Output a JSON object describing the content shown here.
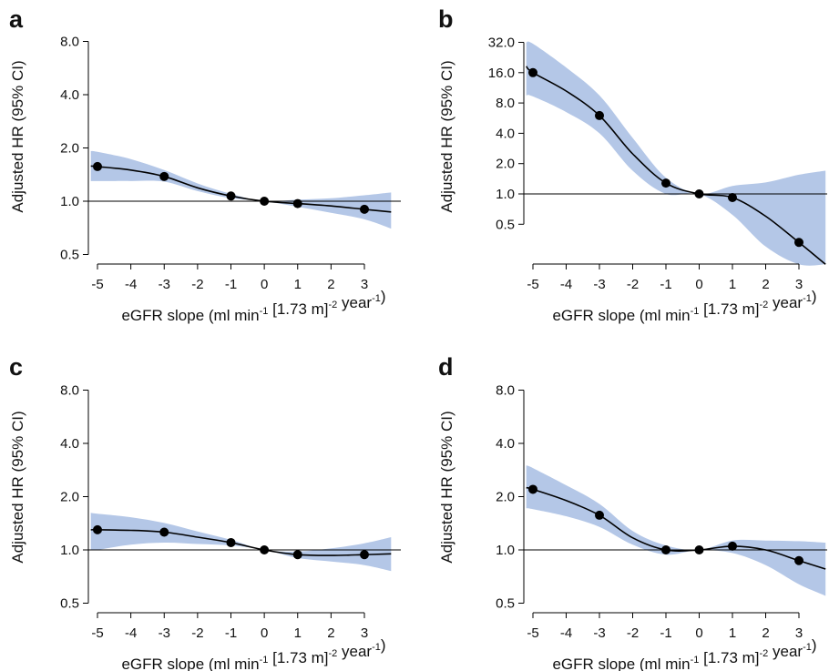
{
  "figure": {
    "colors": {
      "band": "#b4c7e7",
      "line": "#000000",
      "point": "#000000",
      "reference": "#000000"
    }
  },
  "chart_data": [
    {
      "panel": "a",
      "type": "line",
      "xlabel": "eGFR slope (ml min-1 [1.73 m]-2 year-1)",
      "ylabel": "Adjusted HR (95% CI)",
      "y_scale": "log2",
      "xlim": [
        -5.5,
        3.9
      ],
      "ylim": [
        0.45,
        10.0
      ],
      "x_ticks": [
        -5,
        -4,
        -3,
        -2,
        -1,
        0,
        1,
        2,
        3
      ],
      "y_ticks": [
        0.5,
        1.0,
        2.0,
        4.0,
        8.0
      ],
      "y_tick_labels": [
        "0.5",
        "1.0",
        "2.0",
        "4.0",
        "8.0"
      ],
      "reference_y": 1.0,
      "points": {
        "x": [
          -5,
          -3,
          -1,
          0,
          1,
          3
        ],
        "y": [
          1.57,
          1.38,
          1.07,
          1.0,
          0.97,
          0.9
        ]
      },
      "curve": {
        "x": [
          -5.2,
          -5,
          -4,
          -3,
          -2,
          -1,
          0,
          1,
          2,
          3,
          3.8
        ],
        "y": [
          1.58,
          1.57,
          1.5,
          1.38,
          1.19,
          1.07,
          1.0,
          0.97,
          0.94,
          0.9,
          0.87
        ]
      },
      "ci_lower": {
        "x": [
          -5.2,
          -5,
          -4,
          -3,
          -2,
          -1,
          0,
          1,
          2,
          3,
          3.8
        ],
        "y": [
          1.3,
          1.3,
          1.3,
          1.29,
          1.14,
          1.04,
          1.0,
          0.93,
          0.86,
          0.79,
          0.7
        ]
      },
      "ci_upper": {
        "x": [
          -5.2,
          -5,
          -4,
          -3,
          -2,
          -1,
          0,
          1,
          2,
          3,
          3.8
        ],
        "y": [
          1.92,
          1.9,
          1.73,
          1.5,
          1.26,
          1.1,
          1.0,
          1.02,
          1.04,
          1.08,
          1.12
        ]
      }
    },
    {
      "panel": "b",
      "type": "line",
      "xlabel": "eGFR slope (ml min-1 [1.73 m]-2 year-1)",
      "ylabel": "Adjusted HR (95% CI)",
      "y_scale": "log2",
      "xlim": [
        -5.5,
        3.9
      ],
      "ylim": [
        0.18,
        36.0
      ],
      "x_ticks": [
        -5,
        -4,
        -3,
        -2,
        -1,
        0,
        1,
        2,
        3
      ],
      "y_ticks": [
        0.5,
        1.0,
        2.0,
        4.0,
        8.0,
        16.0,
        32.0
      ],
      "y_tick_labels": [
        "0.5",
        "1.0",
        "2.0",
        "4.0",
        "8.0",
        "16.0",
        "32.0"
      ],
      "reference_y": 1.0,
      "points": {
        "x": [
          -5,
          -3,
          -1,
          0,
          1,
          3
        ],
        "y": [
          16.0,
          6.0,
          1.28,
          1.0,
          0.92,
          0.33
        ]
      },
      "curve": {
        "x": [
          -5.2,
          -5,
          -4,
          -3,
          -2,
          -1,
          0,
          1,
          2,
          3,
          3.8
        ],
        "y": [
          18.5,
          16.0,
          10.5,
          6.0,
          2.5,
          1.28,
          1.0,
          0.92,
          0.6,
          0.33,
          0.2
        ]
      },
      "ci_lower": {
        "x": [
          -5.2,
          -5,
          -4,
          -3,
          -2,
          -1,
          0,
          1,
          2,
          3,
          3.8
        ],
        "y": [
          9.5,
          9.3,
          6.5,
          4.0,
          1.7,
          1.0,
          1.0,
          0.62,
          0.3,
          0.2,
          0.2
        ]
      },
      "ci_upper": {
        "x": [
          -5.2,
          -5,
          -4,
          -3,
          -2,
          -1,
          0,
          1,
          2,
          3,
          3.8
        ],
        "y": [
          32.0,
          31.0,
          18.0,
          9.5,
          3.6,
          1.45,
          1.0,
          1.2,
          1.3,
          1.55,
          1.7
        ]
      }
    },
    {
      "panel": "c",
      "type": "line",
      "xlabel": "eGFR slope (ml min-1 [1.73 m]-2 year-1)",
      "ylabel": "Adjusted HR (95% CI)",
      "y_scale": "log2",
      "xlim": [
        -5.5,
        3.9
      ],
      "ylim": [
        0.45,
        10.0
      ],
      "x_ticks": [
        -5,
        -4,
        -3,
        -2,
        -1,
        0,
        1,
        2,
        3
      ],
      "y_ticks": [
        0.5,
        1.0,
        2.0,
        4.0,
        8.0
      ],
      "y_tick_labels": [
        "0.5",
        "1.0",
        "2.0",
        "4.0",
        "8.0"
      ],
      "reference_y": 1.0,
      "points": {
        "x": [
          -5,
          -3,
          -1,
          0,
          1,
          3
        ],
        "y": [
          1.3,
          1.26,
          1.1,
          1.0,
          0.94,
          0.94
        ]
      },
      "curve": {
        "x": [
          -5.2,
          -5,
          -4,
          -3,
          -2,
          -1,
          0,
          1,
          2,
          3,
          3.8
        ],
        "y": [
          1.3,
          1.3,
          1.29,
          1.26,
          1.18,
          1.1,
          1.0,
          0.94,
          0.93,
          0.94,
          0.95
        ]
      },
      "ci_lower": {
        "x": [
          -5.2,
          -5,
          -4,
          -3,
          -2,
          -1,
          0,
          1,
          2,
          3,
          3.8
        ],
        "y": [
          1.0,
          1.0,
          1.07,
          1.1,
          1.08,
          1.06,
          1.0,
          0.9,
          0.86,
          0.82,
          0.76
        ]
      },
      "ci_upper": {
        "x": [
          -5.2,
          -5,
          -4,
          -3,
          -2,
          -1,
          0,
          1,
          2,
          3,
          3.8
        ],
        "y": [
          1.62,
          1.6,
          1.53,
          1.42,
          1.27,
          1.14,
          1.0,
          0.98,
          1.02,
          1.09,
          1.18
        ]
      }
    },
    {
      "panel": "d",
      "type": "line",
      "xlabel": "eGFR slope (ml min-1 [1.73 m]-2 year-1)",
      "ylabel": "Adjusted HR (95% CI)",
      "y_scale": "log2",
      "xlim": [
        -5.5,
        3.9
      ],
      "ylim": [
        0.45,
        10.0
      ],
      "x_ticks": [
        -5,
        -4,
        -3,
        -2,
        -1,
        0,
        1,
        2,
        3
      ],
      "y_ticks": [
        0.5,
        1.0,
        2.0,
        4.0,
        8.0
      ],
      "y_tick_labels": [
        "0.5",
        "1.0",
        "2.0",
        "4.0",
        "8.0"
      ],
      "reference_y": 1.0,
      "points": {
        "x": [
          -5,
          -3,
          -1,
          0,
          1,
          3
        ],
        "y": [
          2.2,
          1.57,
          1.0,
          1.0,
          1.05,
          0.87
        ]
      },
      "curve": {
        "x": [
          -5.2,
          -5,
          -4,
          -3,
          -2,
          -1,
          0,
          1,
          2,
          3,
          3.8
        ],
        "y": [
          2.25,
          2.2,
          1.9,
          1.57,
          1.17,
          1.0,
          1.0,
          1.05,
          1.0,
          0.87,
          0.78
        ]
      },
      "ci_lower": {
        "x": [
          -5.2,
          -5,
          -4,
          -3,
          -2,
          -1,
          0,
          1,
          2,
          3,
          3.8
        ],
        "y": [
          1.72,
          1.7,
          1.55,
          1.35,
          1.07,
          0.94,
          1.0,
          0.96,
          0.82,
          0.64,
          0.55
        ]
      },
      "ci_upper": {
        "x": [
          -5.2,
          -5,
          -4,
          -3,
          -2,
          -1,
          0,
          1,
          2,
          3,
          3.8
        ],
        "y": [
          3.0,
          2.9,
          2.32,
          1.82,
          1.28,
          1.06,
          1.0,
          1.13,
          1.13,
          1.12,
          1.1
        ]
      }
    }
  ],
  "xlabel_parts": {
    "pre": "eGFR slope (ml min",
    "sup1": "-1",
    "mid": " [1.73 m]",
    "sup2": "-2",
    "mid2": " year",
    "sup3": "-1",
    "post": ")"
  }
}
